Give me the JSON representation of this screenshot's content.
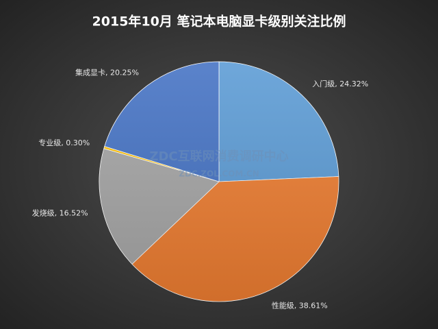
{
  "chart_data": {
    "type": "pie",
    "title": "2015年10月  笔记本电脑显卡级别关注比例",
    "categories": [
      "入门级",
      "性能级",
      "发烧级",
      "专业级",
      "集成显卡"
    ],
    "values": [
      24.32,
      38.61,
      16.52,
      0.3,
      20.25
    ],
    "value_labels": [
      "入门级, 24.32%",
      "性能级, 38.61%",
      "发烧级, 16.52%",
      "专业级, 0.30%",
      "集成显卡, 20.25%"
    ],
    "colors": [
      "#5b9bd5",
      "#ed7d31",
      "#a5a5a5",
      "#ffc000",
      "#4472c4"
    ],
    "watermark": [
      "ZDC互联网消费调研中心",
      "ZDC.ZOL.COM.CN"
    ]
  }
}
